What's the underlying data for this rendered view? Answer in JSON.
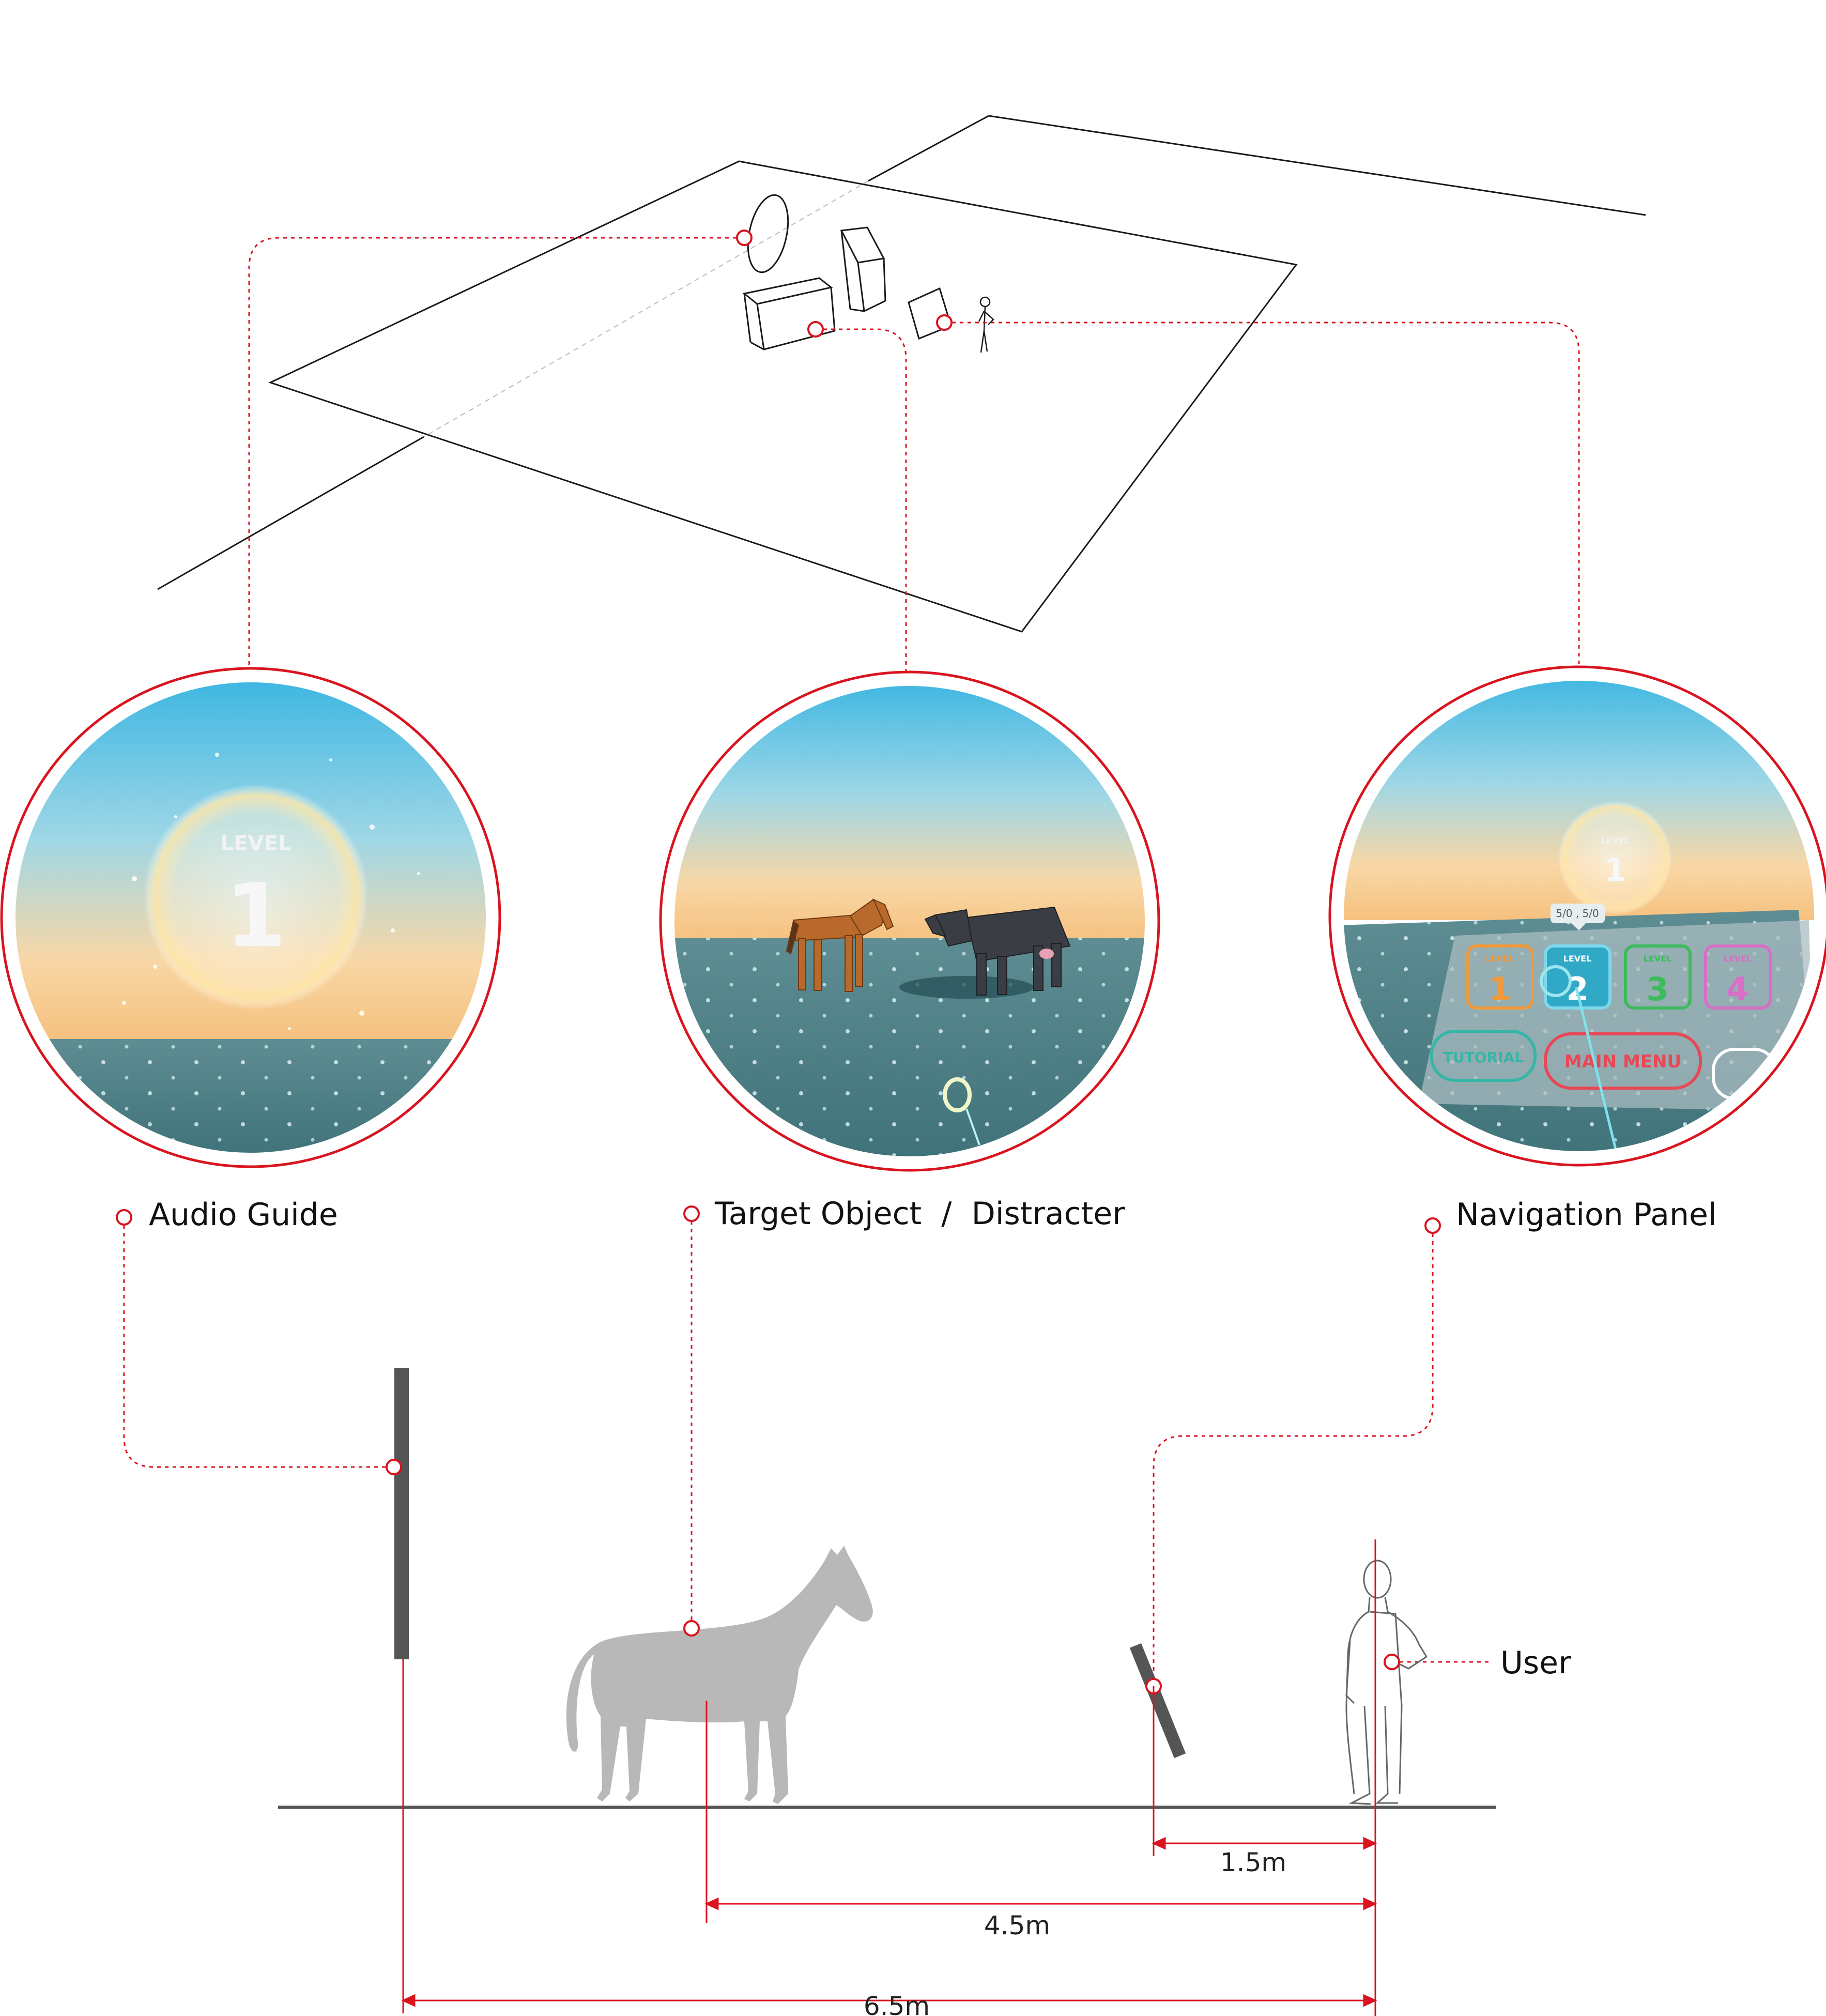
{
  "labels": {
    "audio_guide": "Audio Guide",
    "target_object": "Target Object  /  Distracter",
    "navigation_panel": "Navigation Panel",
    "user": "User"
  },
  "dimensions": {
    "panel_to_user": "1.5m",
    "target_to_user": "4.5m",
    "audio_to_user": "6.5m"
  },
  "views": {
    "audio_guide": {
      "level_caption": "LEVEL",
      "level_number": "1"
    },
    "navigation_panel": {
      "level_caption": "LEVEL",
      "level_number": "1",
      "score": "5/0 , 5/0",
      "buttons": [
        {
          "caption": "LEVEL",
          "number": "1"
        },
        {
          "caption": "LEVEL",
          "number": "2"
        },
        {
          "caption": "LEVEL",
          "number": "3"
        },
        {
          "caption": "LEVEL",
          "number": "4"
        }
      ],
      "tutorial": "TUTORIAL",
      "main_menu": "MAIN MENU"
    }
  },
  "colors": {
    "accent": "#d9141f",
    "line": "#1a1a1a",
    "silhouette": "#b8b8b8",
    "sky_top": "#43b8e3",
    "sky_horizon": "#f7c88e",
    "floor": "#4d8086"
  }
}
